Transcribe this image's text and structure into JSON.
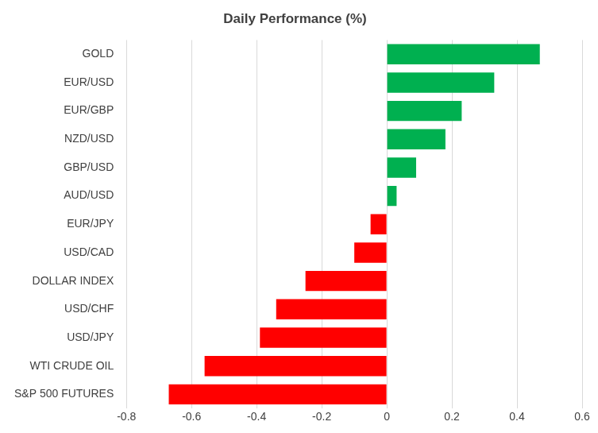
{
  "chart_data": {
    "type": "bar",
    "orientation": "horizontal",
    "title": "Daily Performance (%)",
    "categories": [
      "GOLD",
      "EUR/USD",
      "EUR/GBP",
      "NZD/USD",
      "GBP/USD",
      "AUD/USD",
      "EUR/JPY",
      "USD/CAD",
      "DOLLAR INDEX",
      "USD/CHF",
      "USD/JPY",
      "WTI CRUDE OIL",
      "S&P 500 FUTURES"
    ],
    "values": [
      0.47,
      0.33,
      0.23,
      0.18,
      0.09,
      0.03,
      -0.05,
      -0.1,
      -0.25,
      -0.34,
      -0.39,
      -0.56,
      -0.67
    ],
    "colors": [
      "#00b050",
      "#00b050",
      "#00b050",
      "#00b050",
      "#00b050",
      "#00b050",
      "#ff0000",
      "#ff0000",
      "#ff0000",
      "#ff0000",
      "#ff0000",
      "#ff0000",
      "#ff0000"
    ],
    "xlim": [
      -0.8,
      0.6
    ],
    "xticks": [
      -0.8,
      -0.6,
      -0.4,
      -0.2,
      0,
      0.2,
      0.4,
      0.6
    ],
    "grid": true
  }
}
